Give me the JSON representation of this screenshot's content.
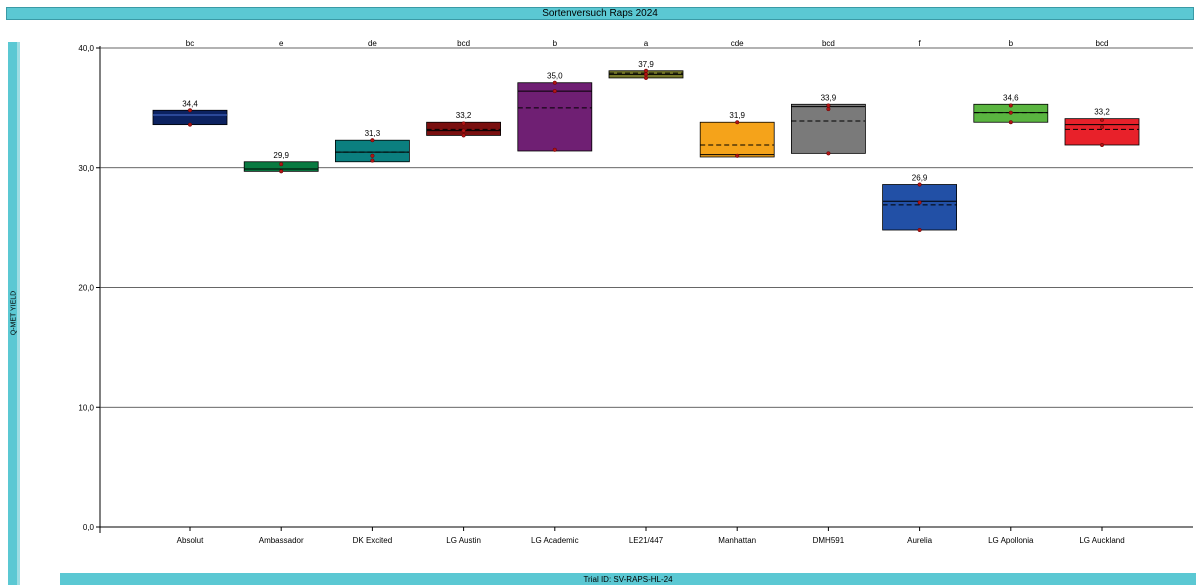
{
  "title": "Sortenversuch Raps 2024",
  "footer": "Trial ID: SV-RAPS-HL-24",
  "chart_data": {
    "type": "box",
    "title": "Sortenversuch Raps 2024",
    "ylabel": "Q-MET YIELD",
    "ylim": [
      0,
      40
    ],
    "yticks": [
      "0,0",
      "10,0",
      "20,0",
      "30,0",
      "40,0"
    ],
    "grid": "horizontal",
    "categories": [
      "Absolut",
      "Ambassador",
      "DK Excited",
      "LG Austin",
      "LG Academic",
      "LE21/447",
      "Manhattan",
      "DMH591",
      "Aurelia",
      "LG Apollonia",
      "LG Auckland"
    ],
    "significance_letters": [
      "bc",
      "e",
      "de",
      "bcd",
      "b",
      "a",
      "cde",
      "bcd",
      "f",
      "b",
      "bcd"
    ],
    "mean_labels": [
      "34,4",
      "29,9",
      "31,3",
      "33,2",
      "35,0",
      "37,9",
      "31,9",
      "33,9",
      "26,9",
      "34,6",
      "33,2"
    ],
    "colors": [
      "#0c2260",
      "#097a41",
      "#0b7f7f",
      "#7a0f0f",
      "#6f1f73",
      "#76782a",
      "#f5a31a",
      "#7a7a7a",
      "#2250a6",
      "#5ab540",
      "#e8212a"
    ],
    "series": [
      {
        "q1": 33.6,
        "q3": 34.8,
        "median": 34.4,
        "mean": 34.4,
        "points": [
          34.8,
          33.6
        ]
      },
      {
        "q1": 29.7,
        "q3": 30.5,
        "median": 29.9,
        "mean": 29.9,
        "points": [
          30.3,
          29.7
        ]
      },
      {
        "q1": 30.5,
        "q3": 32.3,
        "median": 31.3,
        "mean": 31.3,
        "points": [
          32.3,
          31.0,
          30.6
        ]
      },
      {
        "q1": 32.7,
        "q3": 33.8,
        "median": 33.1,
        "mean": 33.2,
        "points": [
          33.7,
          33.1,
          32.7
        ]
      },
      {
        "q1": 31.4,
        "q3": 37.1,
        "median": 36.4,
        "mean": 35.0,
        "points": [
          37.1,
          36.4,
          31.5
        ]
      },
      {
        "q1": 37.5,
        "q3": 38.1,
        "median": 37.8,
        "mean": 37.9,
        "points": [
          38.1,
          37.8,
          37.5
        ]
      },
      {
        "q1": 30.9,
        "q3": 33.8,
        "median": 31.1,
        "mean": 31.9,
        "points": [
          33.8,
          31.0
        ]
      },
      {
        "q1": 31.2,
        "q3": 35.3,
        "median": 35.1,
        "mean": 33.9,
        "points": [
          35.2,
          34.9,
          31.2
        ]
      },
      {
        "q1": 24.8,
        "q3": 28.6,
        "median": 27.2,
        "mean": 26.9,
        "points": [
          28.6,
          27.1,
          24.8
        ]
      },
      {
        "q1": 33.8,
        "q3": 35.3,
        "median": 34.6,
        "mean": 34.6,
        "points": [
          35.2,
          34.6,
          33.8
        ]
      },
      {
        "q1": 31.9,
        "q3": 34.1,
        "median": 33.6,
        "mean": 33.2,
        "points": [
          34.0,
          33.4,
          31.9
        ]
      }
    ]
  }
}
